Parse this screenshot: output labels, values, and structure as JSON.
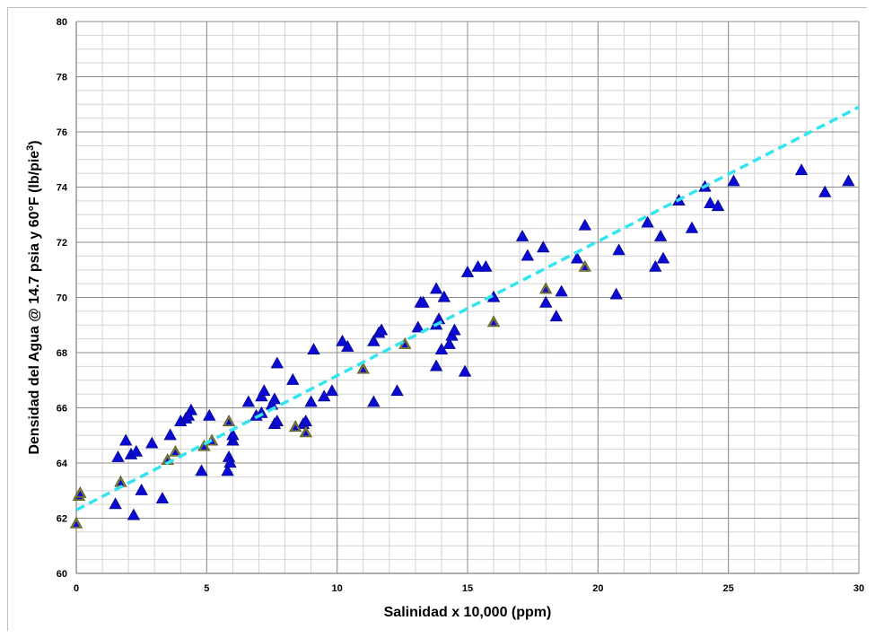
{
  "chart_data": {
    "type": "scatter",
    "title": "",
    "xlabel": "Salinidad x 10,000 (ppm)",
    "ylabel_main": "Densidad del Agua @ 14.7 psia y 60°F (lb/pie",
    "ylabel_sup": "3",
    "ylabel_tail": ")",
    "xlim": [
      0,
      30
    ],
    "ylim": [
      60,
      80
    ],
    "x_ticks": [
      0,
      5,
      10,
      15,
      20,
      25,
      30
    ],
    "y_ticks": [
      60,
      62,
      64,
      66,
      68,
      70,
      72,
      74,
      76,
      78,
      80
    ],
    "grid": true,
    "legend": "none",
    "colors": {
      "marker_blue": "#0a0ad2",
      "marker_olive": "#7a7a3a",
      "trendline": "#33e5ee",
      "major_grid": "#8c8c8c",
      "minor_grid": "#d4d4d4"
    },
    "series": [
      {
        "marker": "triangle",
        "color": "#0a0ad2",
        "points": [
          [
            1.6,
            64.2
          ],
          [
            1.9,
            64.8
          ],
          [
            2.1,
            64.3
          ],
          [
            2.3,
            64.4
          ],
          [
            2.5,
            63.0
          ],
          [
            2.9,
            64.7
          ],
          [
            1.5,
            62.5
          ],
          [
            2.2,
            62.1
          ],
          [
            3.3,
            62.7
          ],
          [
            3.6,
            65.0
          ],
          [
            4.0,
            65.5
          ],
          [
            4.2,
            65.6
          ],
          [
            4.4,
            65.9
          ],
          [
            4.3,
            65.7
          ],
          [
            4.8,
            63.7
          ],
          [
            5.1,
            65.7
          ],
          [
            5.8,
            63.7
          ],
          [
            5.85,
            64.2
          ],
          [
            5.9,
            64.0
          ],
          [
            6.0,
            64.8
          ],
          [
            6.0,
            65.0
          ],
          [
            6.6,
            66.2
          ],
          [
            6.9,
            65.7
          ],
          [
            7.1,
            65.8
          ],
          [
            7.1,
            66.4
          ],
          [
            7.2,
            66.6
          ],
          [
            7.5,
            66.1
          ],
          [
            7.6,
            66.3
          ],
          [
            7.6,
            65.4
          ],
          [
            7.7,
            65.5
          ],
          [
            7.7,
            67.6
          ],
          [
            8.3,
            67.0
          ],
          [
            8.7,
            65.4
          ],
          [
            8.8,
            65.5
          ],
          [
            9.0,
            66.2
          ],
          [
            9.1,
            68.1
          ],
          [
            9.5,
            66.4
          ],
          [
            9.8,
            66.6
          ],
          [
            10.2,
            68.4
          ],
          [
            10.4,
            68.2
          ],
          [
            11.4,
            66.2
          ],
          [
            11.4,
            68.4
          ],
          [
            11.6,
            68.7
          ],
          [
            11.7,
            68.8
          ],
          [
            12.3,
            66.6
          ],
          [
            13.1,
            68.9
          ],
          [
            13.2,
            69.8
          ],
          [
            13.3,
            69.8
          ],
          [
            13.8,
            67.5
          ],
          [
            13.8,
            69.0
          ],
          [
            13.8,
            70.3
          ],
          [
            13.9,
            69.2
          ],
          [
            14.0,
            68.1
          ],
          [
            14.1,
            70.0
          ],
          [
            14.3,
            68.3
          ],
          [
            14.4,
            68.6
          ],
          [
            14.5,
            68.8
          ],
          [
            14.9,
            67.3
          ],
          [
            15.0,
            70.9
          ],
          [
            15.4,
            71.1
          ],
          [
            15.7,
            71.1
          ],
          [
            16.0,
            70.0
          ],
          [
            17.1,
            72.2
          ],
          [
            17.3,
            71.5
          ],
          [
            17.9,
            71.8
          ],
          [
            18.0,
            69.8
          ],
          [
            18.4,
            69.3
          ],
          [
            18.6,
            70.2
          ],
          [
            19.2,
            71.4
          ],
          [
            19.5,
            72.6
          ],
          [
            20.7,
            70.1
          ],
          [
            20.8,
            71.7
          ],
          [
            21.9,
            72.7
          ],
          [
            22.2,
            71.1
          ],
          [
            22.4,
            72.2
          ],
          [
            22.5,
            71.4
          ],
          [
            23.1,
            73.5
          ],
          [
            23.6,
            72.5
          ],
          [
            24.1,
            74.0
          ],
          [
            24.3,
            73.4
          ],
          [
            24.6,
            73.3
          ],
          [
            25.2,
            74.2
          ],
          [
            27.8,
            74.6
          ],
          [
            28.7,
            73.8
          ],
          [
            29.6,
            74.2
          ]
        ]
      },
      {
        "marker": "triangle",
        "color": "#7a7a3a",
        "points": [
          [
            0.0,
            61.8
          ],
          [
            0.1,
            62.8
          ],
          [
            0.15,
            62.9
          ],
          [
            1.7,
            63.3
          ],
          [
            3.5,
            64.1
          ],
          [
            3.8,
            64.4
          ],
          [
            4.9,
            64.6
          ],
          [
            5.2,
            64.8
          ],
          [
            5.85,
            65.5
          ],
          [
            8.4,
            65.3
          ],
          [
            8.8,
            65.1
          ],
          [
            11.0,
            67.4
          ],
          [
            12.6,
            68.3
          ],
          [
            16.0,
            69.1
          ],
          [
            18.0,
            70.3
          ],
          [
            19.5,
            71.1
          ]
        ]
      }
    ],
    "trendline": {
      "style": "dashed",
      "color": "#33e5ee",
      "points": [
        [
          0,
          62.3
        ],
        [
          30,
          76.9
        ]
      ]
    }
  }
}
